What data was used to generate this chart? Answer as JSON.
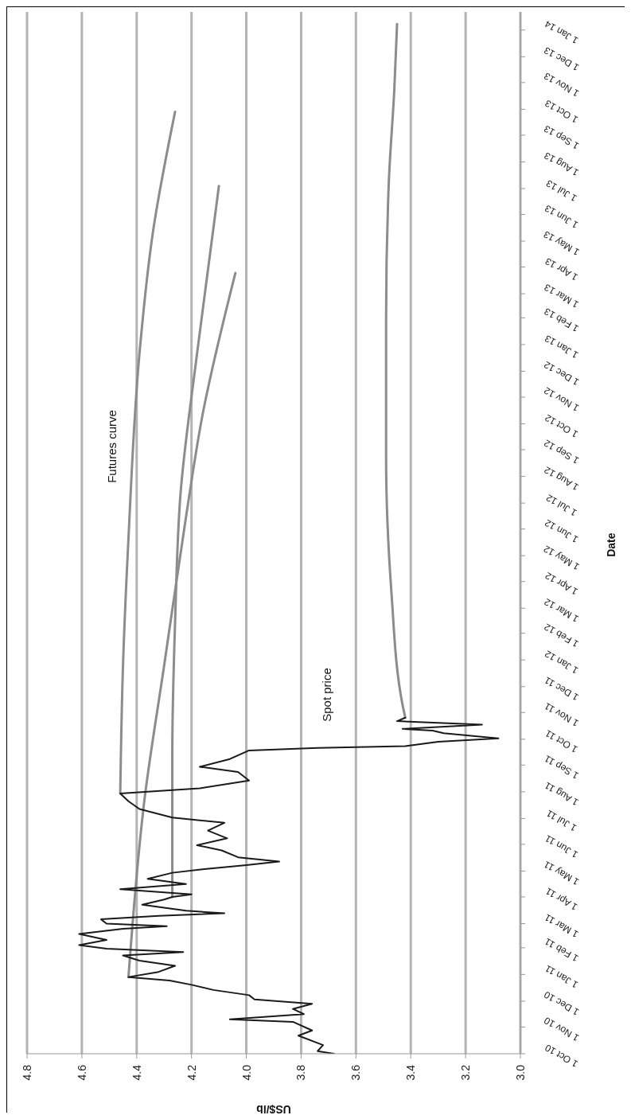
{
  "chart_data": {
    "type": "line",
    "orientation": "horizontal",
    "xlabel": "US$/lb",
    "ylabel": "Date",
    "ylim": [
      "2010-10-01",
      "2014-01-22"
    ],
    "yticks": [
      {
        "value": "2010-10-01",
        "label": "1 Oct 10"
      },
      {
        "value": "2010-11-01",
        "label": "1 Nov 10"
      },
      {
        "value": "2010-12-01",
        "label": "1 Dec 10"
      },
      {
        "value": "2011-01-01",
        "label": "1 Jan 11"
      },
      {
        "value": "2011-02-01",
        "label": "1 Feb 11"
      },
      {
        "value": "2011-03-01",
        "label": "1 Mar 11"
      },
      {
        "value": "2011-04-01",
        "label": "1 Apr 11"
      },
      {
        "value": "2011-05-01",
        "label": "1 May 11"
      },
      {
        "value": "2011-06-01",
        "label": "1 Jun 11"
      },
      {
        "value": "2011-07-01",
        "label": "1 Jul 11"
      },
      {
        "value": "2011-08-01",
        "label": "1 Aug 11"
      },
      {
        "value": "2011-09-01",
        "label": "1 Sep 11"
      },
      {
        "value": "2011-10-01",
        "label": "1 Oct 11"
      },
      {
        "value": "2011-11-01",
        "label": "1 Nov 11"
      },
      {
        "value": "2011-12-01",
        "label": "1 Dec 11"
      },
      {
        "value": "2012-01-01",
        "label": "1 Jan 12"
      },
      {
        "value": "2012-02-01",
        "label": "1 Feb 12"
      },
      {
        "value": "2012-03-01",
        "label": "1 Mar 12"
      },
      {
        "value": "2012-04-01",
        "label": "1 Apr 12"
      },
      {
        "value": "2012-05-01",
        "label": "1 May 12"
      },
      {
        "value": "2012-06-01",
        "label": "1 Jun 12"
      },
      {
        "value": "2012-07-01",
        "label": "1 Jul 12"
      },
      {
        "value": "2012-08-01",
        "label": "1 Aug 12"
      },
      {
        "value": "2012-09-01",
        "label": "1 Sep 12"
      },
      {
        "value": "2012-10-01",
        "label": "1 Oct 12"
      },
      {
        "value": "2012-11-01",
        "label": "1 Nov 12"
      },
      {
        "value": "2012-12-01",
        "label": "1 Dec 12"
      },
      {
        "value": "2013-01-01",
        "label": "1 Jan 13"
      },
      {
        "value": "2013-02-01",
        "label": "1 Feb 13"
      },
      {
        "value": "2013-03-01",
        "label": "1 Mar 13"
      },
      {
        "value": "2013-04-01",
        "label": "1 Apr 13"
      },
      {
        "value": "2013-05-01",
        "label": "1 May 13"
      },
      {
        "value": "2013-06-01",
        "label": "1 Jun 13"
      },
      {
        "value": "2013-07-01",
        "label": "1 Jul 13"
      },
      {
        "value": "2013-08-01",
        "label": "1 Aug 13"
      },
      {
        "value": "2013-09-01",
        "label": "1 Sep 13"
      },
      {
        "value": "2013-10-01",
        "label": "1 Oct 13"
      },
      {
        "value": "2013-11-01",
        "label": "1 Nov 13"
      },
      {
        "value": "2013-12-01",
        "label": "1 Dec 13"
      },
      {
        "value": "2014-01-01",
        "label": "1 Jan 14"
      }
    ],
    "xlim": [
      4.8,
      3.0
    ],
    "xticks": [
      {
        "value": 4.8,
        "label": "4.8"
      },
      {
        "value": 4.6,
        "label": "4.6"
      },
      {
        "value": 4.4,
        "label": "4.4"
      },
      {
        "value": 4.2,
        "label": "4.2"
      },
      {
        "value": 4.0,
        "label": "4.0"
      },
      {
        "value": 3.8,
        "label": "3.8"
      },
      {
        "value": 3.6,
        "label": "3.6"
      },
      {
        "value": 3.4,
        "label": "3.4"
      },
      {
        "value": 3.2,
        "label": "3.2"
      },
      {
        "value": 3.0,
        "label": "3.0"
      }
    ],
    "grid": "x",
    "marker": "none",
    "line_style": "solid",
    "annotations": [
      "Futures curve",
      "Spot price"
    ],
    "series": [
      {
        "color": "#8c8c8c",
        "x": [
          "2011-07-30",
          "2011-12-25",
          "2012-05-21",
          "2012-12-21",
          "2013-05-13",
          "2013-09-28"
        ],
        "values": [
          4.46,
          4.45,
          4.43,
          4.39,
          4.34,
          4.26
        ]
      },
      {
        "color": "#8c8c8c",
        "x": [
          "2011-04-01",
          "2011-09-16",
          "2012-02-13",
          "2012-07-12",
          "2012-12-21",
          "2013-07-04"
        ],
        "values": [
          4.27,
          4.27,
          4.26,
          4.24,
          4.18,
          4.1
        ]
      },
      {
        "color": "#8c8c8c",
        "x": [
          "2010-12-29",
          "2011-07-27",
          "2011-12-25",
          "2012-06-15",
          "2012-10-11",
          "2013-03-25"
        ],
        "values": [
          4.43,
          4.37,
          4.3,
          4.22,
          4.16,
          4.04
        ]
      },
      {
        "color": "#8c8c8c",
        "x": [
          "2011-10-26",
          "2011-11-10",
          "2012-03-17",
          "2012-08-24",
          "2013-01-31",
          "2013-07-09",
          "2013-10-24",
          "2014-01-08"
        ],
        "values": [
          3.42,
          3.43,
          3.47,
          3.49,
          3.49,
          3.48,
          3.46,
          3.45
        ]
      },
      {
        "color": "#1a1a1a",
        "x": [
          "2010-10-01",
          "2010-10-04",
          "2010-10-11",
          "2010-10-22",
          "2010-10-28",
          "2010-11-07",
          "2010-11-10",
          "2010-11-16",
          "2010-11-22",
          "2010-11-28",
          "2010-12-03",
          "2010-12-08",
          "2010-12-14",
          "2010-12-20",
          "2010-12-25",
          "2010-12-29",
          "2011-01-04",
          "2011-01-11",
          "2011-01-17",
          "2011-01-23",
          "2011-01-27",
          "2011-01-31",
          "2011-02-04",
          "2011-02-10",
          "2011-02-17",
          "2011-02-23",
          "2011-02-26",
          "2011-03-01",
          "2011-03-06",
          "2011-03-10",
          "2011-03-13",
          "2011-03-16",
          "2011-03-23",
          "2011-03-29",
          "2011-04-01",
          "2011-04-04",
          "2011-04-10",
          "2011-04-16",
          "2011-04-22",
          "2011-04-29",
          "2011-05-03",
          "2011-05-08",
          "2011-05-12",
          "2011-05-17",
          "2011-05-25",
          "2011-05-31",
          "2011-06-08",
          "2011-06-17",
          "2011-06-26",
          "2011-07-02",
          "2011-07-12",
          "2011-07-21",
          "2011-07-30",
          "2011-08-05",
          "2011-08-14",
          "2011-08-24",
          "2011-08-30",
          "2011-09-08",
          "2011-09-18",
          "2011-09-21",
          "2011-09-23",
          "2011-09-28",
          "2011-10-02",
          "2011-10-08",
          "2011-10-11",
          "2011-10-13",
          "2011-10-18",
          "2011-10-22",
          "2011-10-26"
        ],
        "values": [
          3.68,
          3.74,
          3.72,
          3.81,
          3.76,
          3.83,
          4.06,
          3.79,
          3.83,
          3.76,
          3.97,
          3.99,
          4.12,
          4.2,
          4.28,
          4.43,
          4.32,
          4.26,
          4.39,
          4.45,
          4.23,
          4.51,
          4.61,
          4.51,
          4.61,
          4.45,
          4.29,
          4.51,
          4.53,
          4.32,
          4.08,
          4.22,
          4.38,
          4.3,
          4.27,
          4.2,
          4.46,
          4.22,
          4.36,
          4.27,
          4.16,
          4.0,
          3.88,
          4.03,
          4.09,
          4.18,
          4.07,
          4.14,
          4.08,
          4.27,
          4.39,
          4.43,
          4.46,
          4.17,
          3.99,
          4.03,
          4.17,
          4.06,
          3.99,
          3.74,
          3.42,
          3.3,
          3.08,
          3.28,
          3.32,
          3.43,
          3.14,
          3.45,
          3.42
        ]
      }
    ]
  }
}
